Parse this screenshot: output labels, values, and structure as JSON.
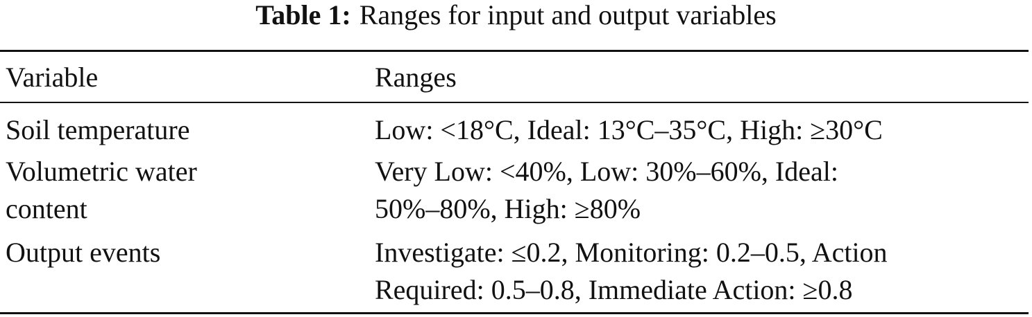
{
  "caption": {
    "label": "Table 1:",
    "text": "Ranges for input and output variables"
  },
  "table": {
    "header": [
      "Variable",
      "Ranges"
    ],
    "rows": [
      [
        [
          "Soil temperature"
        ],
        [
          "Low: <18°C, Ideal: 13°C–35°C, High: ≥30°C"
        ]
      ],
      [
        [
          "Volumetric water",
          "content"
        ],
        [
          "Very Low: <40%, Low: 30%–60%, Ideal:",
          "50%–80%, High: ≥80%"
        ]
      ],
      [
        [
          "Output events"
        ],
        [
          "Investigate: ≤0.2, Monitoring: 0.2–0.5, Action",
          "Required: 0.5–0.8, Immediate Action: ≥0.8"
        ]
      ]
    ]
  }
}
